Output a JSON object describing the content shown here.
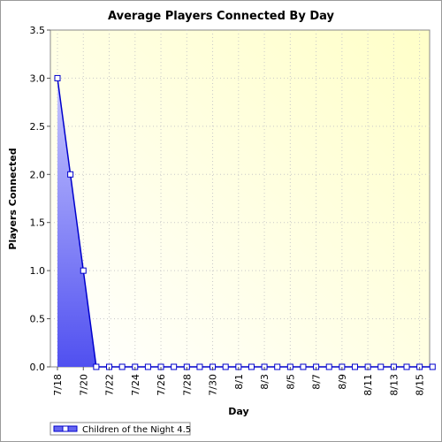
{
  "chart_data": {
    "type": "area",
    "title": "Average Players Connected By Day",
    "xlabel": "Day",
    "ylabel": "Players Connected",
    "ylim": [
      0,
      3.5
    ],
    "y_ticks": [
      "0.0",
      "0.5",
      "1.0",
      "1.5",
      "2.0",
      "2.5",
      "3.0",
      "3.5"
    ],
    "x_ticks": [
      "7/18",
      "7/20",
      "7/22",
      "7/24",
      "7/26",
      "7/28",
      "7/30",
      "8/1",
      "8/3",
      "8/5",
      "8/7",
      "8/9",
      "8/11",
      "8/13",
      "8/15"
    ],
    "x": [
      "7/18",
      "7/19",
      "7/20",
      "7/21",
      "7/22",
      "7/23",
      "7/24",
      "7/25",
      "7/26",
      "7/27",
      "7/28",
      "7/29",
      "7/30",
      "7/31",
      "8/1",
      "8/2",
      "8/3",
      "8/4",
      "8/5",
      "8/6",
      "8/7",
      "8/8",
      "8/9",
      "8/10",
      "8/11",
      "8/12",
      "8/13",
      "8/14",
      "8/15",
      "8/16"
    ],
    "series": [
      {
        "name": "Children of the Night 4.5",
        "values": [
          3.0,
          2.0,
          1.0,
          0,
          0,
          0,
          0,
          0,
          0,
          0,
          0,
          0,
          0,
          0,
          0,
          0,
          0,
          0,
          0,
          0,
          0,
          0,
          0,
          0,
          0,
          0,
          0,
          0,
          0,
          0
        ]
      }
    ],
    "grid": true,
    "legend_position": "bottom-left",
    "colors": {
      "line": "#0000cc",
      "fill_top": "#9a9aff",
      "fill_bottom": "#5050f0",
      "plot_bg_light": "#fffff0",
      "plot_bg_yellow": "#ffffc8",
      "grid": "#c8c8c8"
    }
  }
}
